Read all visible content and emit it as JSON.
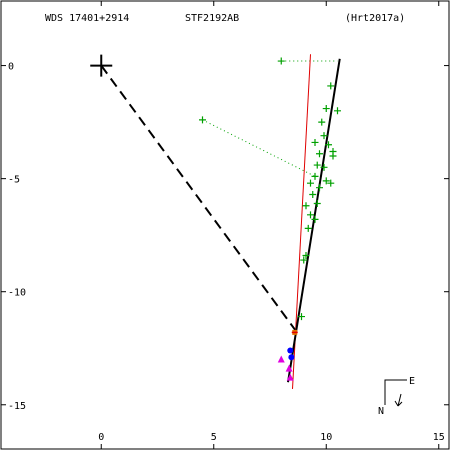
{
  "header": {
    "wds_id": "WDS 17401+2914",
    "discoverer": "STF2192AB",
    "reference": "(Hrt2017a)"
  },
  "chart_data": {
    "type": "scatter",
    "title": "",
    "xlabel": "",
    "ylabel": "",
    "xlim": [
      -4.5,
      15.5
    ],
    "ylim": [
      -17,
      2.9
    ],
    "x_ticks": [
      0,
      5,
      10,
      15
    ],
    "y_ticks": [
      0,
      -5,
      -10,
      -15
    ],
    "x_tick_labels": [
      "0",
      "5",
      "10",
      "15"
    ],
    "y_tick_labels": [
      "0",
      "-5",
      "-10",
      "-15"
    ],
    "grid": false,
    "colors": {
      "orbit": "#000000",
      "motion_line": "#e00000",
      "micrometer": "#00a000",
      "residual": "#00a000",
      "speckle": "#0000ff",
      "interferometric": "#e000e0",
      "recent": "#e07000",
      "primary": "#000000"
    },
    "primary_star": {
      "x": 0,
      "y": 0
    },
    "orbit_line": {
      "start": [
        10.6,
        0.3
      ],
      "end": [
        8.3,
        -14.0
      ]
    },
    "motion_line": {
      "start": [
        9.3,
        0.5
      ],
      "end": [
        8.5,
        -14.3
      ]
    },
    "node_line": {
      "start": [
        0,
        0
      ],
      "end": [
        8.7,
        -11.8
      ]
    },
    "micrometer_points": [
      [
        8.0,
        0.2
      ],
      [
        4.5,
        -2.4
      ],
      [
        10.2,
        -0.9
      ],
      [
        10.0,
        -1.9
      ],
      [
        10.5,
        -2.0
      ],
      [
        9.8,
        -2.5
      ],
      [
        9.5,
        -3.4
      ],
      [
        9.9,
        -3.1
      ],
      [
        10.1,
        -3.5
      ],
      [
        9.7,
        -3.9
      ],
      [
        10.3,
        -4.0
      ],
      [
        10.3,
        -3.8
      ],
      [
        9.6,
        -4.4
      ],
      [
        9.9,
        -4.5
      ],
      [
        9.5,
        -4.9
      ],
      [
        10.0,
        -5.1
      ],
      [
        9.3,
        -5.2
      ],
      [
        9.7,
        -5.4
      ],
      [
        10.2,
        -5.2
      ],
      [
        9.4,
        -5.7
      ],
      [
        9.6,
        -6.1
      ],
      [
        9.1,
        -6.2
      ],
      [
        9.3,
        -6.6
      ],
      [
        9.5,
        -6.8
      ],
      [
        9.2,
        -7.2
      ],
      [
        9.1,
        -8.4
      ],
      [
        9.0,
        -8.6
      ],
      [
        8.9,
        -11.1
      ]
    ],
    "residual_segments": [
      [
        [
          8.0,
          0.2
        ],
        [
          10.5,
          0.2
        ]
      ],
      [
        [
          4.5,
          -2.4
        ],
        [
          9.5,
          -4.9
        ]
      ]
    ],
    "speckle_points": [
      [
        8.4,
        -12.6
      ],
      [
        8.45,
        -12.9
      ]
    ],
    "interferometric_points": [
      [
        8.0,
        -13.0
      ],
      [
        8.35,
        -13.4
      ],
      [
        8.4,
        -13.8
      ]
    ],
    "recent_points": [
      [
        8.6,
        -11.8
      ]
    ],
    "compass": {
      "north": "N",
      "east": "E"
    }
  }
}
